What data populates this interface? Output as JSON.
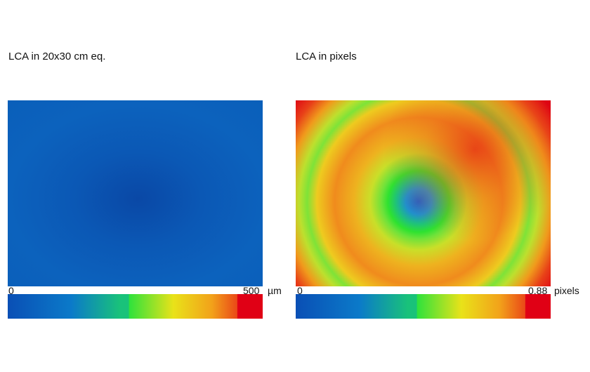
{
  "colormap": [
    "#0a4fb5",
    "#0b7ac9",
    "#19c27a",
    "#2ee23c",
    "#e9e219",
    "#f2a21a",
    "#ea4818",
    "#e00015"
  ],
  "charts": [
    {
      "title": "LCA in 20x30 cm eq.",
      "colorbar": {
        "min_label": "0",
        "max_label": "500",
        "unit": "µm"
      },
      "center_color": "#0a4aa8",
      "edge_color": "#0b62bd"
    },
    {
      "title": "LCA in pixels",
      "colorbar": {
        "min_label": "0",
        "max_label": "0,88",
        "unit": "pixels"
      },
      "center_color": "#1f74cf",
      "edge_color": "#e00015"
    }
  ],
  "chart_data": [
    {
      "type": "heatmap",
      "title": "LCA in 20x30 cm eq.",
      "value_range": [
        0,
        500
      ],
      "unit": "µm"
    },
    {
      "type": "heatmap",
      "title": "LCA in pixels",
      "value_range": [
        0,
        0.88
      ],
      "unit": "pixels"
    }
  ]
}
